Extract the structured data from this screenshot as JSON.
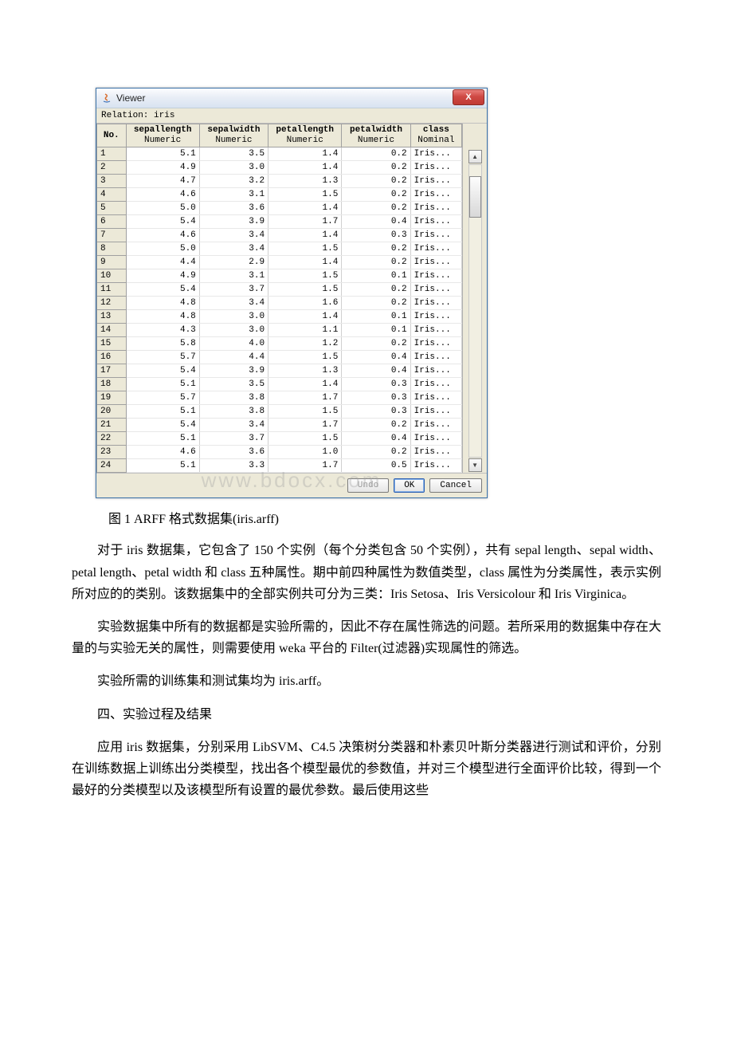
{
  "viewer": {
    "title": "Viewer",
    "close_glyph": "X",
    "relation_label": "Relation: iris",
    "columns": [
      {
        "name": "No.",
        "type": ""
      },
      {
        "name": "sepallength",
        "type": "Numeric"
      },
      {
        "name": "sepalwidth",
        "type": "Numeric"
      },
      {
        "name": "petallength",
        "type": "Numeric"
      },
      {
        "name": "petalwidth",
        "type": "Numeric"
      },
      {
        "name": "class",
        "type": "Nominal"
      }
    ],
    "rows": [
      [
        "1",
        "5.1",
        "3.5",
        "1.4",
        "0.2",
        "Iris..."
      ],
      [
        "2",
        "4.9",
        "3.0",
        "1.4",
        "0.2",
        "Iris..."
      ],
      [
        "3",
        "4.7",
        "3.2",
        "1.3",
        "0.2",
        "Iris..."
      ],
      [
        "4",
        "4.6",
        "3.1",
        "1.5",
        "0.2",
        "Iris..."
      ],
      [
        "5",
        "5.0",
        "3.6",
        "1.4",
        "0.2",
        "Iris..."
      ],
      [
        "6",
        "5.4",
        "3.9",
        "1.7",
        "0.4",
        "Iris..."
      ],
      [
        "7",
        "4.6",
        "3.4",
        "1.4",
        "0.3",
        "Iris..."
      ],
      [
        "8",
        "5.0",
        "3.4",
        "1.5",
        "0.2",
        "Iris..."
      ],
      [
        "9",
        "4.4",
        "2.9",
        "1.4",
        "0.2",
        "Iris..."
      ],
      [
        "10",
        "4.9",
        "3.1",
        "1.5",
        "0.1",
        "Iris..."
      ],
      [
        "11",
        "5.4",
        "3.7",
        "1.5",
        "0.2",
        "Iris..."
      ],
      [
        "12",
        "4.8",
        "3.4",
        "1.6",
        "0.2",
        "Iris..."
      ],
      [
        "13",
        "4.8",
        "3.0",
        "1.4",
        "0.1",
        "Iris..."
      ],
      [
        "14",
        "4.3",
        "3.0",
        "1.1",
        "0.1",
        "Iris..."
      ],
      [
        "15",
        "5.8",
        "4.0",
        "1.2",
        "0.2",
        "Iris..."
      ],
      [
        "16",
        "5.7",
        "4.4",
        "1.5",
        "0.4",
        "Iris..."
      ],
      [
        "17",
        "5.4",
        "3.9",
        "1.3",
        "0.4",
        "Iris..."
      ],
      [
        "18",
        "5.1",
        "3.5",
        "1.4",
        "0.3",
        "Iris..."
      ],
      [
        "19",
        "5.7",
        "3.8",
        "1.7",
        "0.3",
        "Iris..."
      ],
      [
        "20",
        "5.1",
        "3.8",
        "1.5",
        "0.3",
        "Iris..."
      ],
      [
        "21",
        "5.4",
        "3.4",
        "1.7",
        "0.2",
        "Iris..."
      ],
      [
        "22",
        "5.1",
        "3.7",
        "1.5",
        "0.4",
        "Iris..."
      ],
      [
        "23",
        "4.6",
        "3.6",
        "1.0",
        "0.2",
        "Iris..."
      ],
      [
        "24",
        "5.1",
        "3.3",
        "1.7",
        "0.5",
        "Iris..."
      ]
    ],
    "buttons": {
      "undo": "Undo",
      "ok": "OK",
      "cancel": "Cancel"
    },
    "watermark": "www.bdocx.com"
  },
  "caption": "图 1 ARFF 格式数据集(iris.arff)",
  "paragraphs": {
    "p1": "对于 iris 数据集，它包含了 150 个实例（每个分类包含 50 个实例），共有 sepal length、sepal width、petal length、petal width 和 class 五种属性。期中前四种属性为数值类型，class 属性为分类属性，表示实例所对应的的类别。该数据集中的全部实例共可分为三类：Iris Setosa、Iris Versicolour 和 Iris Virginica。",
    "p2": "实验数据集中所有的数据都是实验所需的，因此不存在属性筛选的问题。若所采用的数据集中存在大量的与实验无关的属性，则需要使用 weka 平台的 Filter(过滤器)实现属性的筛选。",
    "p3": "实验所需的训练集和测试集均为 iris.arff。",
    "p4": "四、实验过程及结果",
    "p5": "应用 iris 数据集，分别采用 LibSVM、C4.5 决策树分类器和朴素贝叶斯分类器进行测试和评价，分别在训练数据上训练出分类模型，找出各个模型最优的参数值，并对三个模型进行全面评价比较，得到一个最好的分类模型以及该模型所有设置的最优参数。最后使用这些"
  }
}
